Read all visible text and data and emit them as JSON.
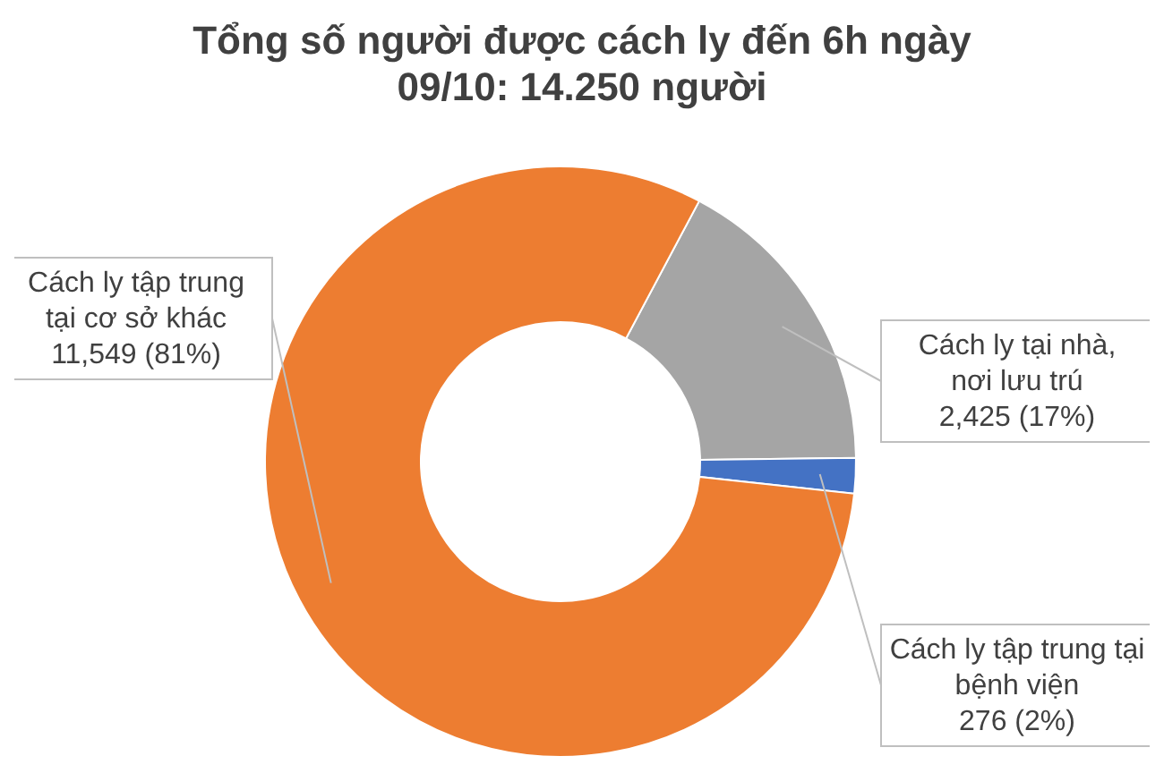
{
  "chart_data": {
    "type": "donut",
    "title": "Tổng số người được cách ly đến 6h ngày\n09/10: 14.250 người",
    "categories": [
      "Cách ly tại nhà, nơi lưu trú",
      "Cách ly tập trung tại bệnh viện",
      "Cách ly tập trung tại cơ sở khác"
    ],
    "values": [
      2425,
      276,
      11549
    ],
    "colors": [
      "#a5a5a5",
      "#4472c4",
      "#ed7d31"
    ],
    "value_labels": [
      "2,425 (17%)",
      "276 (2%)",
      "11,549 (81%)"
    ],
    "legend": false
  }
}
